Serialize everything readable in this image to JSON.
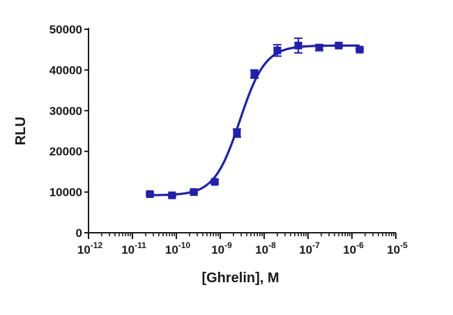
{
  "chart_data": {
    "type": "scatter",
    "title": "",
    "xlabel": "[Ghrelin], M",
    "ylabel": "RLU",
    "x_scale": "log",
    "xlim": [
      1e-12,
      1e-05
    ],
    "ylim": [
      0,
      50000
    ],
    "x_ticks": [
      {
        "value": 1e-12,
        "base": "10",
        "exp": "-12"
      },
      {
        "value": 1e-11,
        "base": "10",
        "exp": "-11"
      },
      {
        "value": 1e-10,
        "base": "10",
        "exp": "-10"
      },
      {
        "value": 1e-09,
        "base": "10",
        "exp": "-9"
      },
      {
        "value": 1e-08,
        "base": "10",
        "exp": "-8"
      },
      {
        "value": 1e-07,
        "base": "10",
        "exp": "-7"
      },
      {
        "value": 1e-06,
        "base": "10",
        "exp": "-6"
      },
      {
        "value": 1e-05,
        "base": "10",
        "exp": "-5"
      }
    ],
    "y_ticks": [
      "0",
      "10000",
      "20000",
      "30000",
      "40000",
      "50000"
    ],
    "y_tick_values": [
      0,
      10000,
      20000,
      30000,
      40000,
      50000
    ],
    "grid": false,
    "series": [
      {
        "color": "#1f1fb4",
        "marker": "square",
        "points": [
          {
            "x": 2.5e-11,
            "y": 9500,
            "err": 300
          },
          {
            "x": 8e-11,
            "y": 9200,
            "err": 300
          },
          {
            "x": 2.5e-10,
            "y": 10000,
            "err": 300
          },
          {
            "x": 7.5e-10,
            "y": 12500,
            "err": 300
          },
          {
            "x": 2.4e-09,
            "y": 24500,
            "err": 1000
          },
          {
            "x": 6e-09,
            "y": 39000,
            "err": 1000
          },
          {
            "x": 2e-08,
            "y": 44800,
            "err": 1400
          },
          {
            "x": 6e-08,
            "y": 46000,
            "err": 1800
          },
          {
            "x": 1.8e-07,
            "y": 45500,
            "err": 700
          },
          {
            "x": 5e-07,
            "y": 46000,
            "err": 300
          },
          {
            "x": 1.5e-06,
            "y": 45000,
            "err": 300
          }
        ],
        "fit": {
          "model": "4PL",
          "bottom": 9200,
          "top": 46000,
          "ec50": 2.8e-09,
          "hill": 1.5,
          "x_range": [
            2.5e-11,
            1.5e-06
          ]
        }
      }
    ]
  }
}
